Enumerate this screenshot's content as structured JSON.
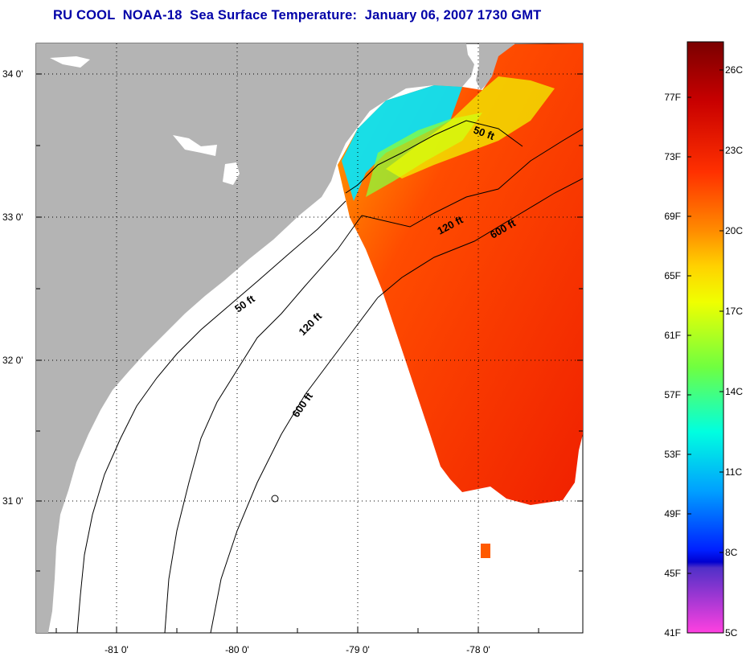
{
  "title": "RU COOL  NOAA-18  Sea Surface Temperature:  January 06, 2007 1730 GMT",
  "map": {
    "lat_labels": [
      "34 0'",
      "33 0'",
      "32 0'",
      "31 0'"
    ],
    "lon_labels": [
      "-81 0'",
      "-80 0'",
      "-79 0'",
      "-78 0'"
    ],
    "depth_labels": [
      "50 ft",
      "120 ft",
      "600 ft",
      "50 ft",
      "120 ft",
      "600 ft"
    ],
    "colors": {
      "land": "#b4b4b4",
      "water_no_data": "#ffffff",
      "contour": "#000000"
    }
  },
  "colorbar": {
    "fahrenheit_labels": [
      "77F",
      "73F",
      "69F",
      "65F",
      "61F",
      "57F",
      "53F",
      "49F",
      "45F",
      "41F"
    ],
    "celsius_labels": [
      "26C",
      "23C",
      "20C",
      "17C",
      "14C",
      "11C",
      "8C",
      "5C"
    ],
    "gradient": [
      "#7a0000",
      "#c80000",
      "#ff2a00",
      "#ff7a00",
      "#ffd200",
      "#f0ff00",
      "#6cff50",
      "#00ffd2",
      "#00a8ff",
      "#0028ff",
      "#0000e0",
      "#8a3cff",
      "#ff40e0"
    ]
  }
}
